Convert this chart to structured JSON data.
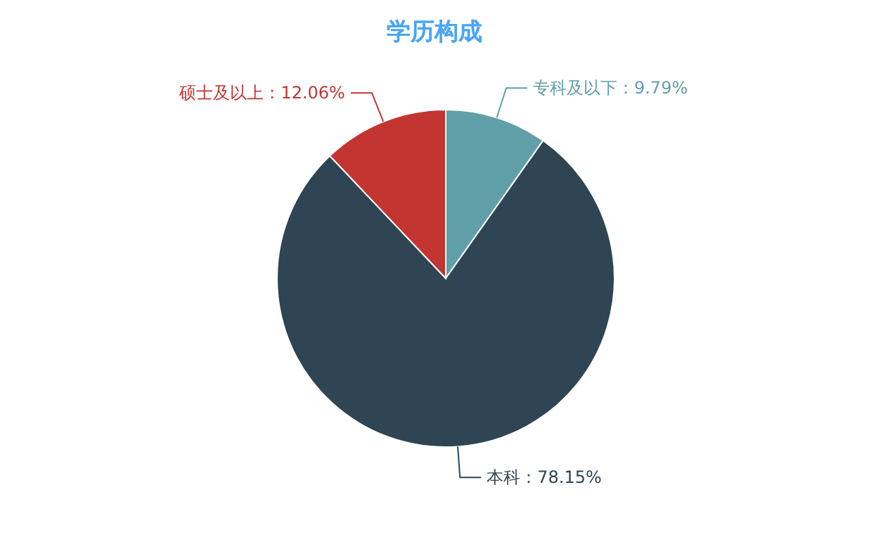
{
  "chart_data": {
    "type": "pie",
    "title": "学历构成",
    "categories": [
      "专科及以下",
      "本科",
      "硕士及以上"
    ],
    "values": [
      9.79,
      78.15,
      12.06
    ],
    "value_labels": [
      "：9.79%",
      "：78.15%",
      "：12.06%"
    ],
    "colors": [
      "#61a0a8",
      "#2f4554",
      "#c23531"
    ]
  }
}
